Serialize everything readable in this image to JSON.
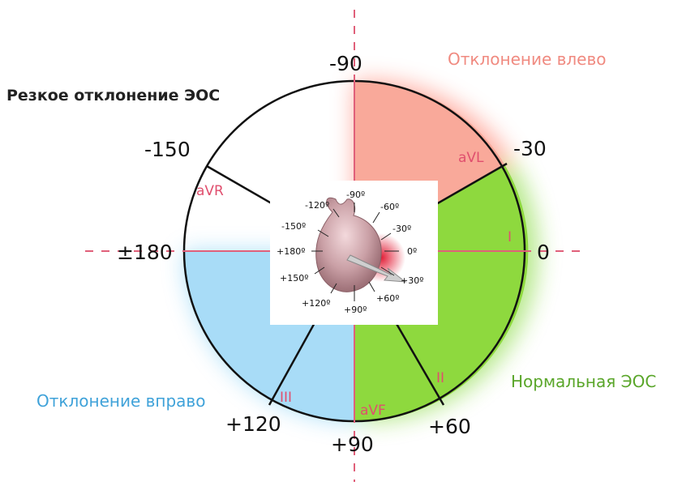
{
  "title": "Резкое отклонение ЭОС",
  "zones": {
    "left_deviation": "Отклонение влево",
    "right_deviation": "Отклонение вправо",
    "normal": "Нормальная ЭОС"
  },
  "angles": {
    "top": "-90",
    "upper_right": "-30",
    "right": "0",
    "lower_right": "+60",
    "bottom": "+90",
    "lower_left": "+120",
    "left": "±180",
    "upper_left": "-150"
  },
  "leads": {
    "avl": "aVL",
    "i": "I",
    "ii": "II",
    "avf": "aVF",
    "iii": "III",
    "avr": "aVR"
  },
  "inset_angles": [
    "-120º",
    "-90º",
    "-60º",
    "-150º",
    "-30º",
    "+180º",
    "0º",
    "+150º",
    "+30º",
    "+120º",
    "+90º",
    "+60º"
  ],
  "colors": {
    "left_deviation": "#f9a99a",
    "normal": "#8ed93e",
    "right_deviation": "#a8dcf7",
    "axis_pink": "#e0607a",
    "lead_label": "#e04f6e",
    "right_text": "#3fa2d9",
    "normal_text": "#5aa62a",
    "left_text": "#f08a80"
  }
}
